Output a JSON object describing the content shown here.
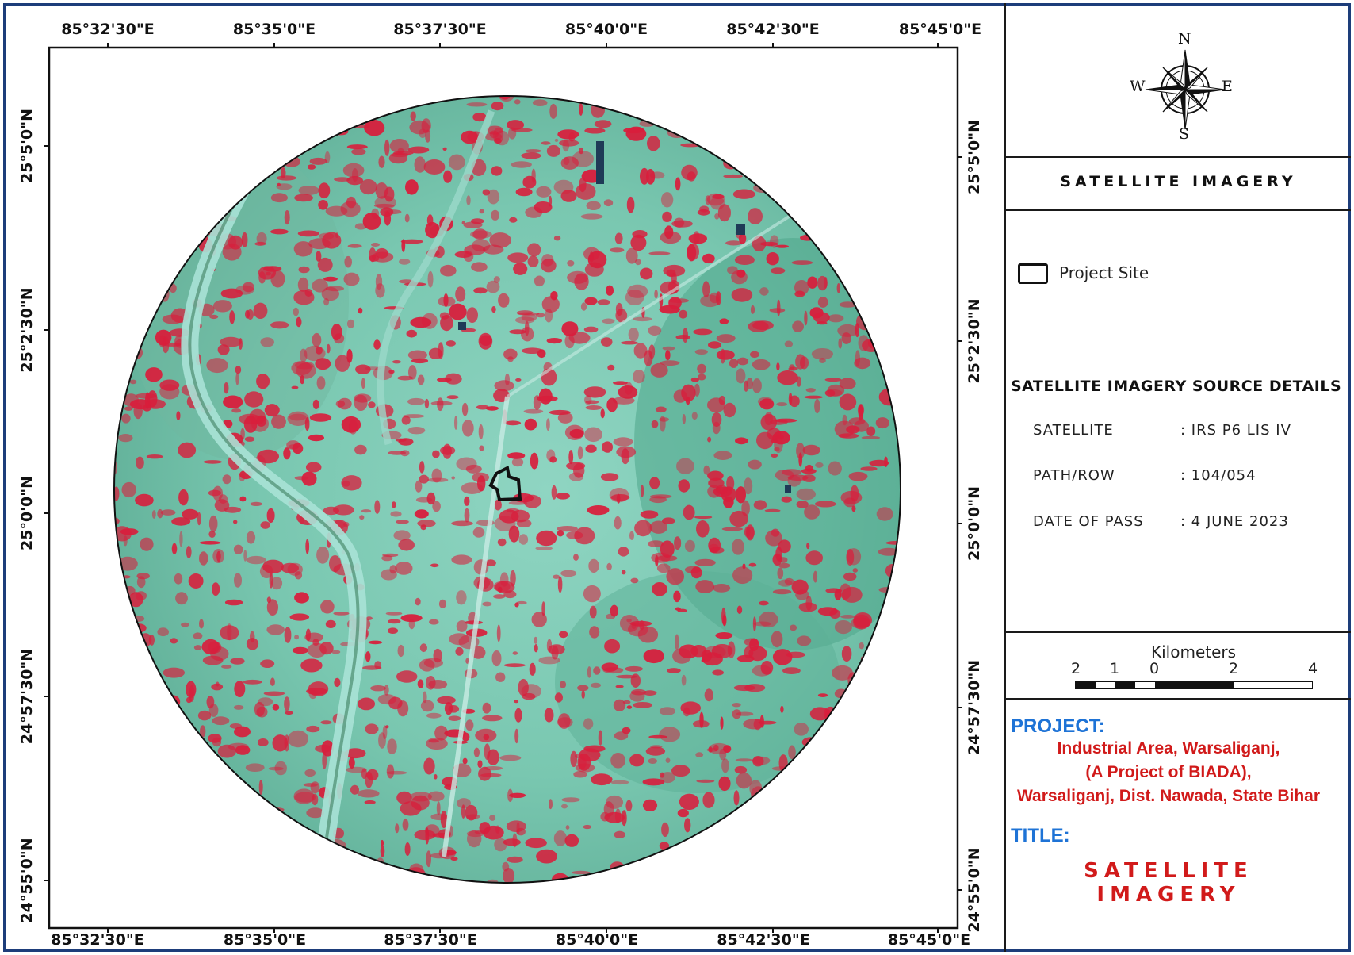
{
  "map": {
    "top_ticks": [
      "85°32'30\"E",
      "85°35'0\"E",
      "85°37'30\"E",
      "85°40'0\"E",
      "85°42'30\"E",
      "85°45'0\"E"
    ],
    "bottom_ticks": [
      "85°32'30\"E",
      "85°35'0\"E",
      "85°37'30\"E",
      "85°40'0\"E",
      "85°42'30\"E",
      "85°45'0\"E"
    ],
    "left_ticks": [
      "25°5'0\"N",
      "25°2'30\"N",
      "25°0'0\"N",
      "24°57'30\"N",
      "24°55'0\"N"
    ],
    "right_ticks": [
      "25°5'0\"N",
      "25°2'30\"N",
      "25°0'0\"N",
      "24°57'30\"N",
      "24°55'0\"N"
    ],
    "colors": {
      "vegetation": "#d81e3c",
      "ground": "#7fcfb8",
      "water": "#1f3b57",
      "river": "#a8e2d6"
    }
  },
  "compass": {
    "n": "N",
    "s": "S",
    "e": "E",
    "w": "W"
  },
  "panel": {
    "title": "SATELLITE IMAGERY",
    "legend_label": "Project Site",
    "source_heading": "SATELLITE IMAGERY SOURCE DETAILS",
    "source_rows": [
      {
        "label": "SATELLITE",
        "value": ":  IRS P6 LIS IV"
      },
      {
        "label": "PATH/ROW",
        "value": ": 104/054"
      },
      {
        "label": "DATE OF PASS",
        "value": ": 4 JUNE 2023"
      }
    ],
    "scale": {
      "title": "Kilometers",
      "ticks": [
        "2",
        "1",
        "0",
        "2",
        "4"
      ]
    },
    "project_heading": "PROJECT:",
    "project_lines": [
      "Industrial Area, Warsaliganj,",
      "(A Project of BIADA),",
      "Warsaliganj, Dist. Nawada, State Bihar"
    ],
    "title_heading": "TITLE:",
    "title_value": "SATELLITE IMAGERY"
  }
}
